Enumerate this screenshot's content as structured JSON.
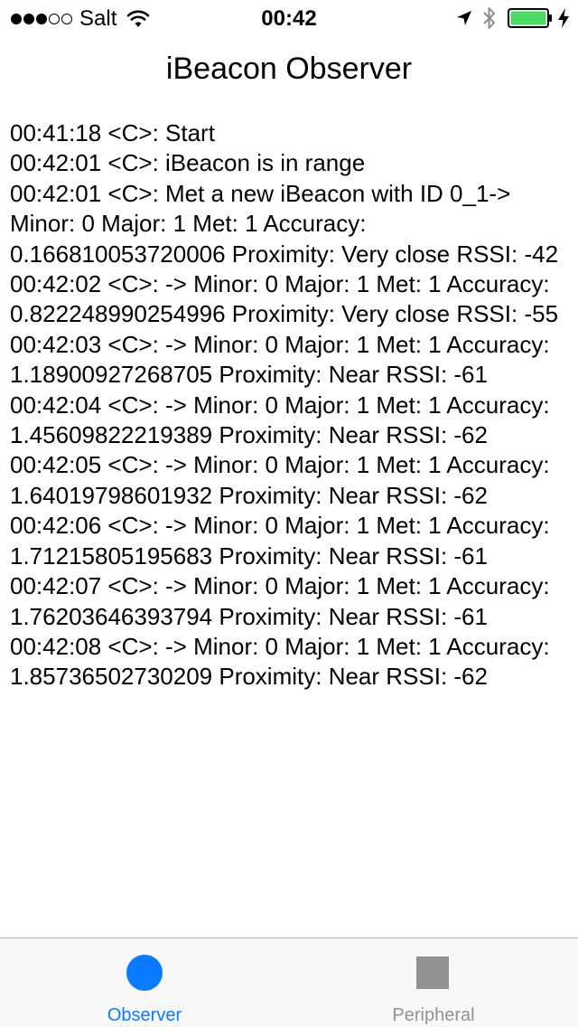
{
  "status_bar": {
    "signal_filled": 3,
    "signal_total": 5,
    "carrier": "Salt",
    "time": "00:42",
    "icons": [
      "wifi-icon",
      "location-icon",
      "bluetooth-icon",
      "battery-icon",
      "charging-icon"
    ],
    "battery_level": 1.0,
    "battery_color": "#4cd964"
  },
  "nav": {
    "title": "iBeacon Observer"
  },
  "log": [
    "00:41:18 <C>: Start",
    "00:42:01 <C>: iBeacon is in range",
    "00:42:01 <C>: Met a new iBeacon with ID 0_1-> Minor: 0 Major: 1 Met: 1 Accuracy: 0.166810053720006 Proximity: Very close RSSI: -42",
    "00:42:02 <C>: -> Minor: 0 Major: 1 Met: 1 Accuracy: 0.822248990254996 Proximity: Very close RSSI: -55",
    "00:42:03 <C>: -> Minor: 0 Major: 1 Met: 1 Accuracy: 1.18900927268705 Proximity: Near RSSI: -61",
    "00:42:04 <C>: -> Minor: 0 Major: 1 Met: 1 Accuracy: 1.45609822219389 Proximity: Near RSSI: -62",
    "00:42:05 <C>: -> Minor: 0 Major: 1 Met: 1 Accuracy: 1.64019798601932 Proximity: Near RSSI: -62",
    "00:42:06 <C>: -> Minor: 0 Major: 1 Met: 1 Accuracy: 1.71215805195683 Proximity: Near RSSI: -61",
    "00:42:07 <C>: -> Minor: 0 Major: 1 Met: 1 Accuracy: 1.76203646393794 Proximity: Near RSSI: -61",
    "00:42:08 <C>: -> Minor: 0 Major: 1 Met: 1 Accuracy: 1.85736502730209 Proximity: Near RSSI: -62"
  ],
  "tab_bar": {
    "tabs": [
      {
        "label": "Observer",
        "icon": "circle-icon",
        "selected": true,
        "color": "#0a7aff"
      },
      {
        "label": "Peripheral",
        "icon": "square-icon",
        "selected": false,
        "color": "#929292"
      }
    ]
  }
}
